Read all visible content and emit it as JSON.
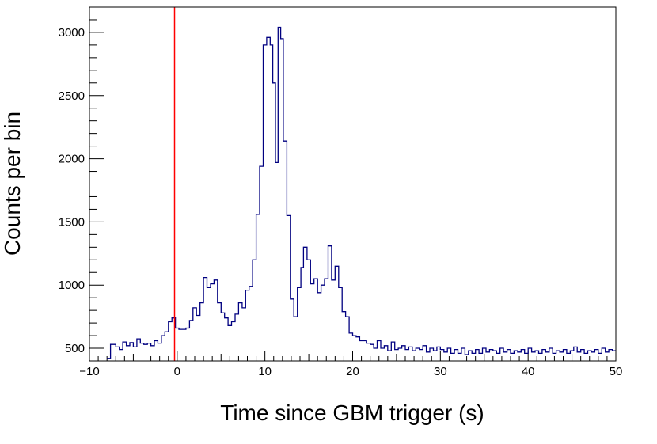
{
  "chart_data": {
    "type": "histogram",
    "title": "",
    "xlabel": "Time since GBM trigger (s)",
    "ylabel": "Counts per bin",
    "xlim": [
      -10,
      50
    ],
    "ylim": [
      400,
      3200
    ],
    "x_ticks": [
      -10,
      0,
      10,
      20,
      30,
      40,
      50
    ],
    "x_tick_labels": [
      "−10",
      "0",
      "10",
      "20",
      "30",
      "40",
      "50"
    ],
    "y_ticks": [
      500,
      1000,
      1500,
      2000,
      2500,
      3000
    ],
    "y_tick_labels": [
      "500",
      "1000",
      "1500",
      "2000",
      "2500",
      "3000"
    ],
    "grid": false,
    "series_color": "#000080",
    "trigger_line": {
      "x": -0.3,
      "color": "#ff0000"
    },
    "series": [
      {
        "name": "",
        "points": [
          [
            -8.0,
            420
          ],
          [
            -7.6,
            530
          ],
          [
            -7.0,
            510
          ],
          [
            -6.6,
            490
          ],
          [
            -6.2,
            550
          ],
          [
            -5.8,
            520
          ],
          [
            -5.4,
            545
          ],
          [
            -5.0,
            510
          ],
          [
            -4.6,
            575
          ],
          [
            -4.2,
            540
          ],
          [
            -3.8,
            530
          ],
          [
            -3.4,
            540
          ],
          [
            -3.0,
            520
          ],
          [
            -2.6,
            560
          ],
          [
            -2.2,
            540
          ],
          [
            -1.8,
            600
          ],
          [
            -1.4,
            630
          ],
          [
            -1.0,
            710
          ],
          [
            -0.6,
            740
          ],
          [
            -0.2,
            660
          ],
          [
            0.2,
            650
          ],
          [
            0.6,
            650
          ],
          [
            1.0,
            660
          ],
          [
            1.4,
            720
          ],
          [
            1.8,
            820
          ],
          [
            2.2,
            760
          ],
          [
            2.6,
            860
          ],
          [
            3.0,
            1060
          ],
          [
            3.4,
            980
          ],
          [
            3.8,
            1010
          ],
          [
            4.2,
            1040
          ],
          [
            4.6,
            860
          ],
          [
            5.0,
            780
          ],
          [
            5.4,
            740
          ],
          [
            5.8,
            680
          ],
          [
            6.2,
            710
          ],
          [
            6.6,
            770
          ],
          [
            7.0,
            860
          ],
          [
            7.4,
            820
          ],
          [
            7.8,
            960
          ],
          [
            8.2,
            990
          ],
          [
            8.6,
            1200
          ],
          [
            9.0,
            1560
          ],
          [
            9.4,
            1940
          ],
          [
            9.8,
            2900
          ],
          [
            10.2,
            2960
          ],
          [
            10.6,
            2900
          ],
          [
            10.9,
            2600
          ],
          [
            11.2,
            1970
          ],
          [
            11.5,
            3040
          ],
          [
            11.8,
            2950
          ],
          [
            12.1,
            2140
          ],
          [
            12.5,
            1550
          ],
          [
            12.9,
            890
          ],
          [
            13.3,
            750
          ],
          [
            13.7,
            980
          ],
          [
            14.1,
            1140
          ],
          [
            14.4,
            1300
          ],
          [
            14.8,
            1200
          ],
          [
            15.2,
            1010
          ],
          [
            15.6,
            1050
          ],
          [
            16.0,
            940
          ],
          [
            16.4,
            1000
          ],
          [
            16.8,
            1050
          ],
          [
            17.2,
            1310
          ],
          [
            17.6,
            1040
          ],
          [
            18.0,
            1150
          ],
          [
            18.4,
            980
          ],
          [
            18.8,
            790
          ],
          [
            19.2,
            750
          ],
          [
            19.6,
            620
          ],
          [
            20.0,
            600
          ],
          [
            20.4,
            590
          ],
          [
            20.8,
            560
          ],
          [
            21.2,
            560
          ],
          [
            21.6,
            540
          ],
          [
            22.0,
            530
          ],
          [
            22.4,
            500
          ],
          [
            22.8,
            560
          ],
          [
            23.2,
            500
          ],
          [
            23.6,
            520
          ],
          [
            24.0,
            480
          ],
          [
            24.4,
            550
          ],
          [
            24.8,
            490
          ],
          [
            25.2,
            500
          ],
          [
            25.6,
            520
          ],
          [
            26.0,
            490
          ],
          [
            26.4,
            510
          ],
          [
            26.8,
            480
          ],
          [
            27.2,
            500
          ],
          [
            27.6,
            490
          ],
          [
            28.0,
            520
          ],
          [
            28.4,
            470
          ],
          [
            28.8,
            500
          ],
          [
            29.2,
            480
          ],
          [
            29.6,
            510
          ],
          [
            30.0,
            490
          ],
          [
            30.4,
            470
          ],
          [
            30.8,
            500
          ],
          [
            31.2,
            460
          ],
          [
            31.6,
            490
          ],
          [
            32.0,
            460
          ],
          [
            32.4,
            500
          ],
          [
            32.8,
            450
          ],
          [
            33.2,
            480
          ],
          [
            33.6,
            460
          ],
          [
            34.0,
            490
          ],
          [
            34.4,
            460
          ],
          [
            34.8,
            500
          ],
          [
            35.2,
            470
          ],
          [
            35.6,
            490
          ],
          [
            36.0,
            480
          ],
          [
            36.4,
            460
          ],
          [
            36.8,
            500
          ],
          [
            37.2,
            470
          ],
          [
            37.6,
            490
          ],
          [
            38.0,
            460
          ],
          [
            38.4,
            480
          ],
          [
            38.8,
            470
          ],
          [
            39.2,
            490
          ],
          [
            39.6,
            460
          ],
          [
            40.0,
            500
          ],
          [
            40.4,
            470
          ],
          [
            40.8,
            480
          ],
          [
            41.2,
            460
          ],
          [
            41.6,
            490
          ],
          [
            42.0,
            470
          ],
          [
            42.4,
            500
          ],
          [
            42.8,
            460
          ],
          [
            43.2,
            480
          ],
          [
            43.6,
            470
          ],
          [
            44.0,
            490
          ],
          [
            44.4,
            460
          ],
          [
            44.8,
            480
          ],
          [
            45.2,
            510
          ],
          [
            45.6,
            470
          ],
          [
            46.0,
            490
          ],
          [
            46.4,
            460
          ],
          [
            46.8,
            480
          ],
          [
            47.2,
            470
          ],
          [
            47.6,
            490
          ],
          [
            48.0,
            460
          ],
          [
            48.4,
            500
          ],
          [
            48.8,
            470
          ],
          [
            49.2,
            490
          ],
          [
            49.6,
            480
          ]
        ]
      }
    ]
  }
}
